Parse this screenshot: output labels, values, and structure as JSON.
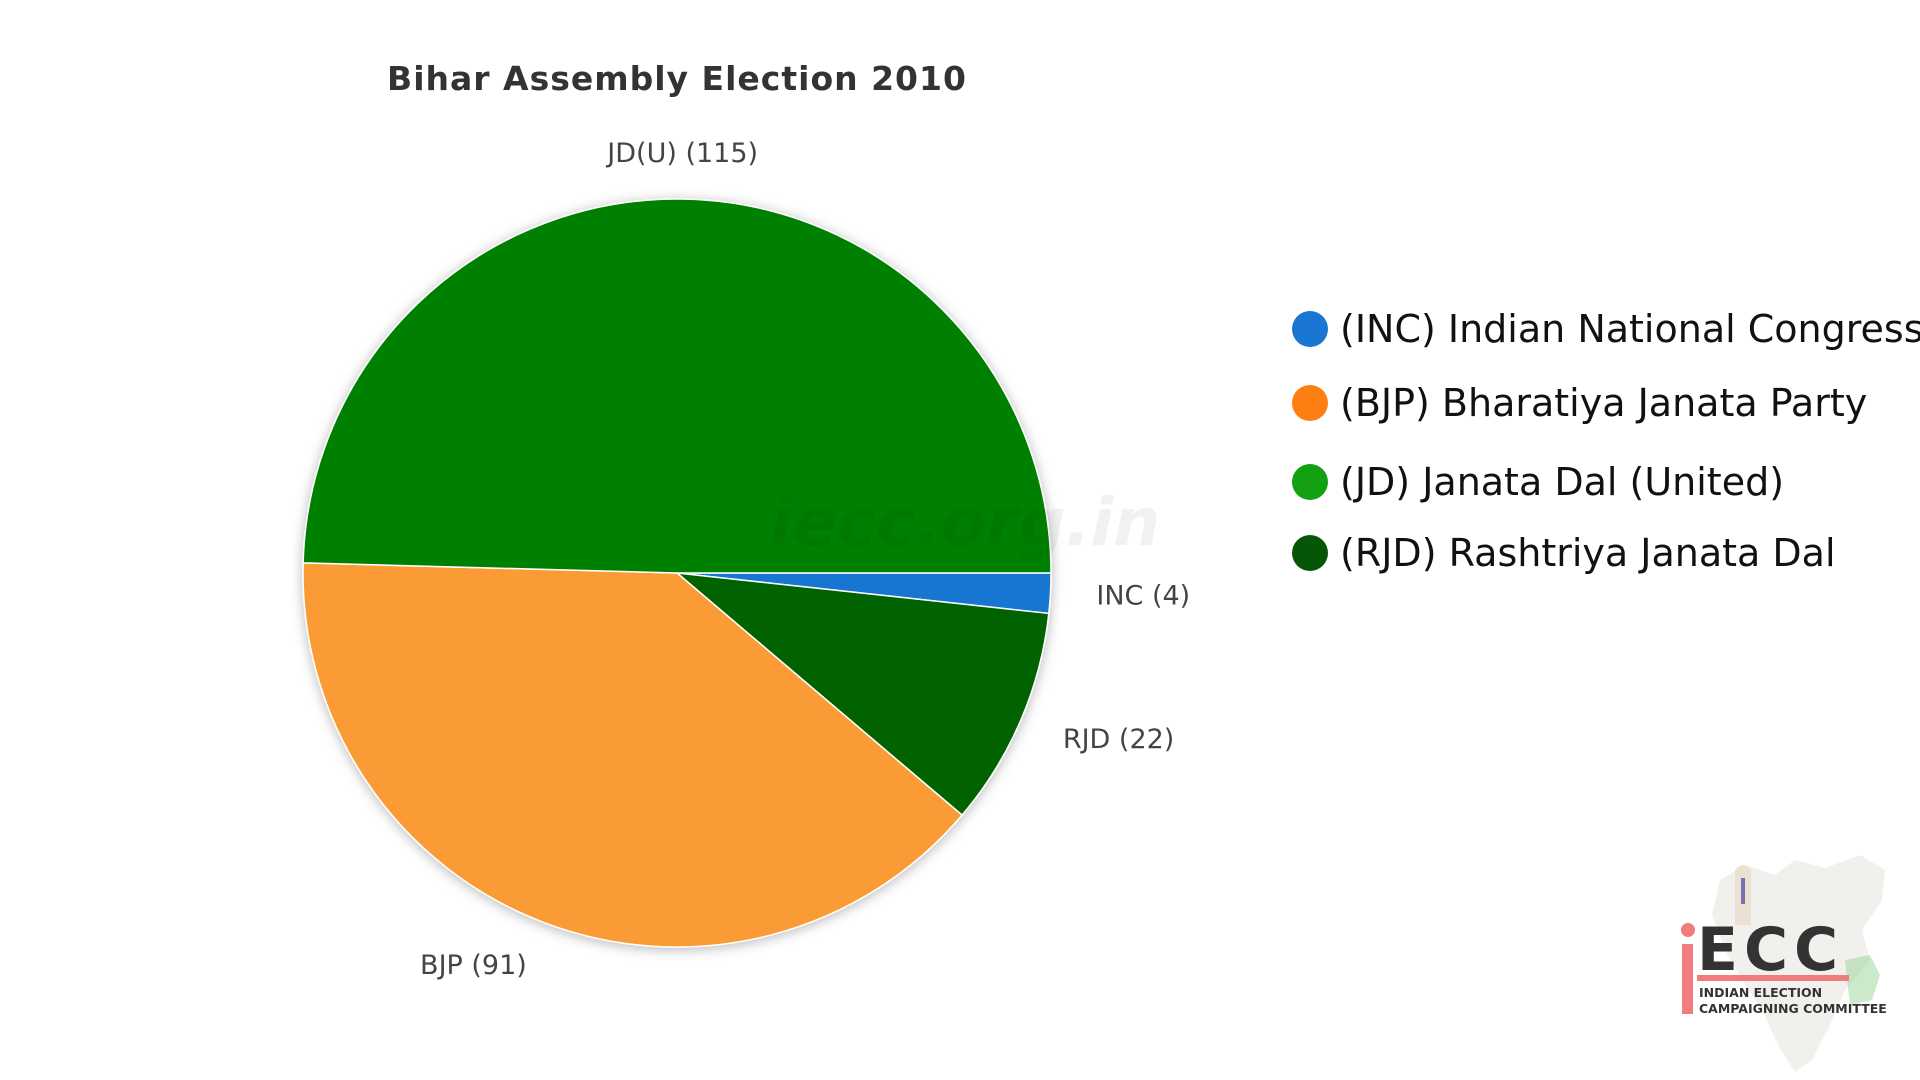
{
  "chart_data": {
    "type": "pie",
    "title": "Bihar Assembly Election 2010",
    "slices": [
      {
        "key": "INC",
        "label": "INC (4)",
        "value": 4,
        "color": "#1976d2"
      },
      {
        "key": "RJD",
        "label": "RJD (22)",
        "value": 22,
        "color": "#006400"
      },
      {
        "key": "BJP",
        "label": "BJP (91)",
        "value": 91,
        "color": "#fb9b36"
      },
      {
        "key": "JDU",
        "label": "JD(U) (115)",
        "value": 115,
        "color": "#008000"
      }
    ],
    "legend": {
      "placement": "right",
      "entries": [
        {
          "label": "(INC) Indian National Congress",
          "color": "#1976d2"
        },
        {
          "label": "(BJP) Bharatiya Janata Party",
          "color": "#fd7f12"
        },
        {
          "label": "(JD) Janata Dal (United)",
          "color": "#13a013"
        },
        {
          "label": "(RJD) Rashtriya Janata Dal",
          "color": "#075607"
        }
      ]
    }
  },
  "watermark": "iecc.org.in",
  "logo": {
    "letters": "ECC",
    "line1": "INDIAN ELECTION",
    "line2": "CAMPAIGNING COMMITTEE",
    "accent_color": "#f07c7c"
  }
}
